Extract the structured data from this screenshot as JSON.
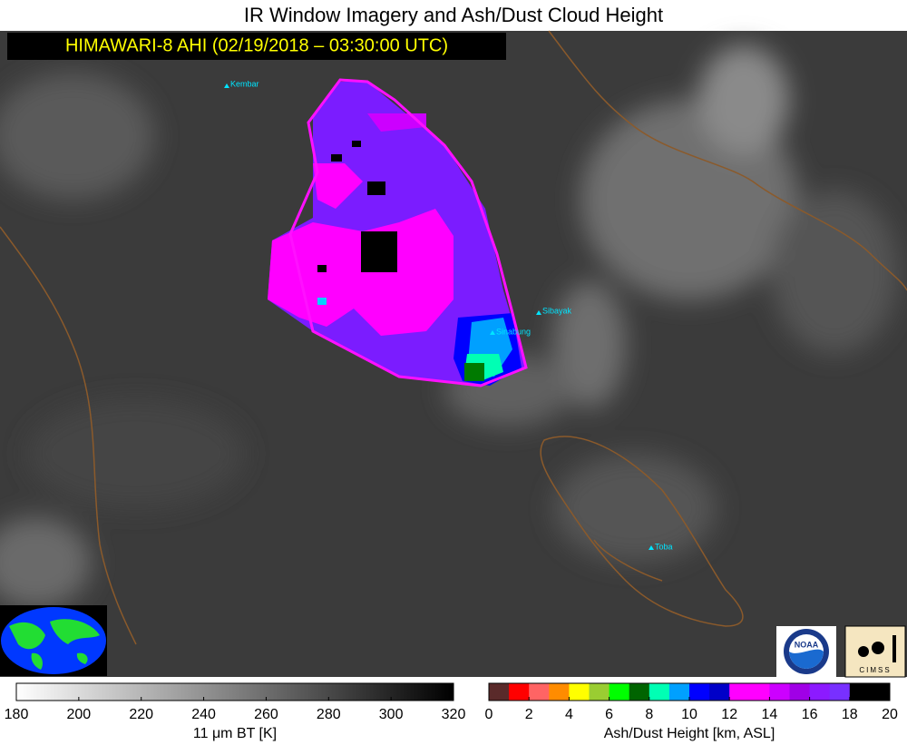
{
  "title": "IR Window Imagery and Ash/Dust Cloud Height",
  "banner": "HIMAWARI-8 AHI (02/19/2018 – 03:30:00 UTC)",
  "places": [
    {
      "label": "Kembar"
    },
    {
      "label": "Sibayak"
    },
    {
      "label": "Sinabung"
    },
    {
      "label": "Toba"
    }
  ],
  "colorbars": [
    {
      "label": "11 μm BT [K]",
      "lim": [
        180,
        320
      ],
      "ticks": [
        180,
        200,
        220,
        240,
        260,
        280,
        300,
        320
      ],
      "gradient": true,
      "colors": [
        "#ffffff",
        "#000000"
      ]
    },
    {
      "label": "Ash/Dust Height [km, ASL]",
      "lim": [
        0,
        20
      ],
      "ticks": [
        0,
        2,
        4,
        6,
        8,
        10,
        12,
        14,
        16,
        18,
        20
      ],
      "gradient": false,
      "colors": [
        "#5a2a2a",
        "#ff0000",
        "#ff6464",
        "#ff8c00",
        "#ffff00",
        "#9acd32",
        "#00ff00",
        "#006400",
        "#00ffb4",
        "#00a0ff",
        "#0000ff",
        "#0000c8",
        "#ff00ff",
        "#ff00ff",
        "#cc00ff",
        "#a000e6",
        "#8c1aff",
        "#7830ff",
        "#000000",
        "#000000"
      ]
    }
  ],
  "logos": {
    "cimss": "CIMSS",
    "noaa": "NOAA"
  }
}
